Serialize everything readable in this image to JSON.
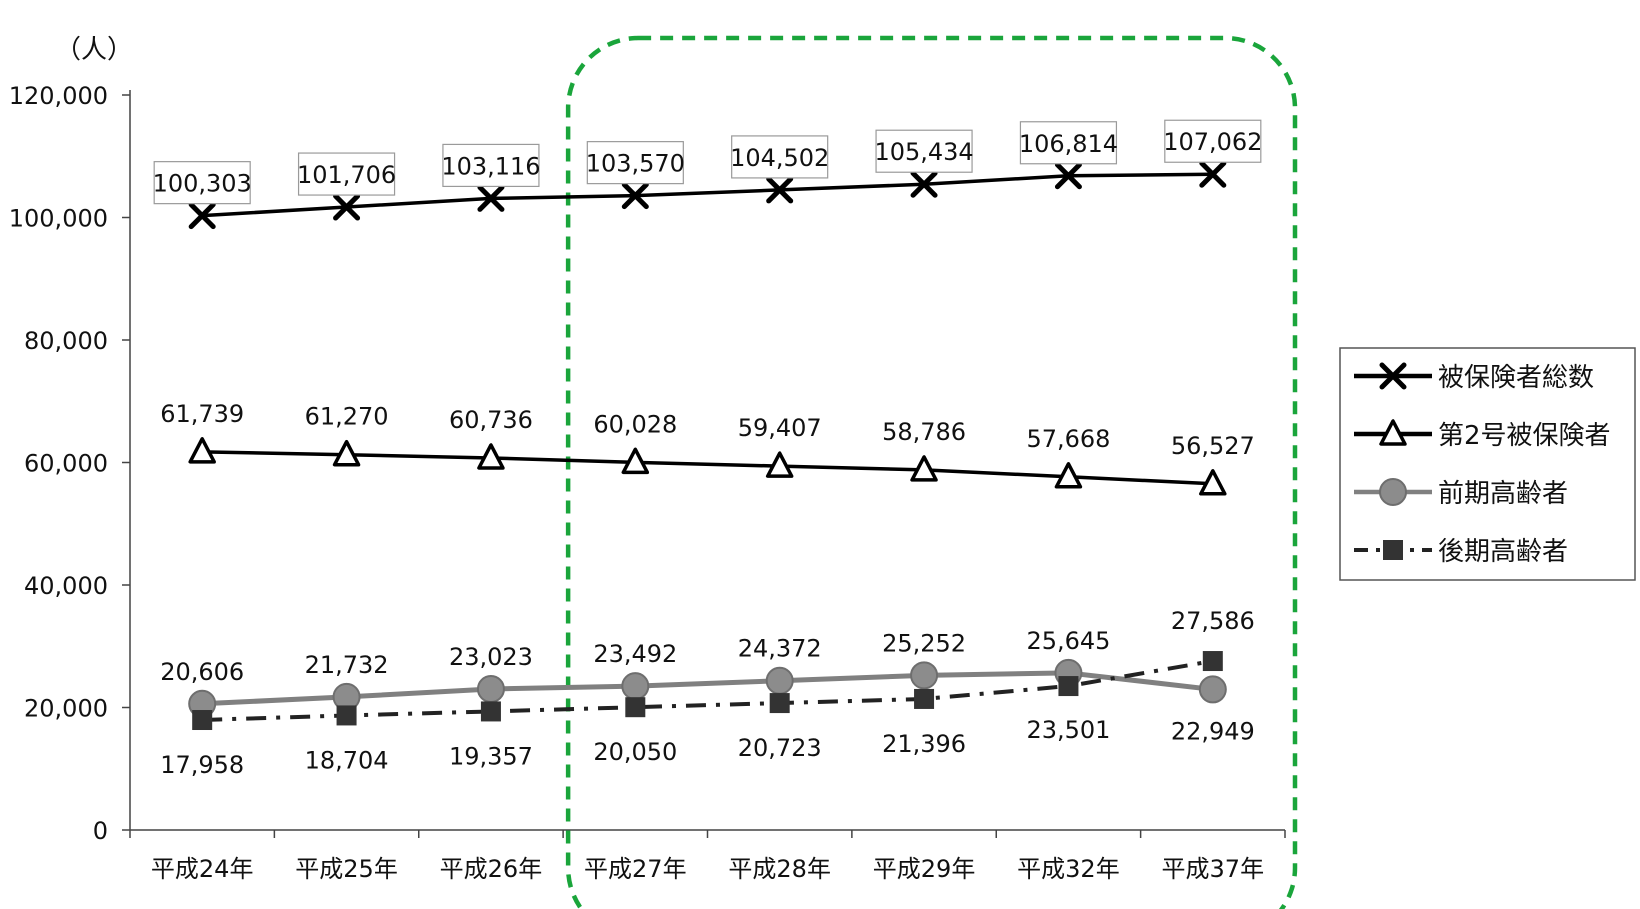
{
  "chart_data": {
    "type": "line",
    "ylabel": "（人）",
    "ylim": [
      0,
      120000
    ],
    "yticks": [
      0,
      20000,
      40000,
      60000,
      80000,
      100000,
      120000
    ],
    "ytick_labels": [
      "0",
      "20,000",
      "40,000",
      "60,000",
      "80,000",
      "100,000",
      "120,000"
    ],
    "categories": [
      "平成24年",
      "平成25年",
      "平成26年",
      "平成27年",
      "平成28年",
      "平成29年",
      "平成32年",
      "平成37年"
    ],
    "legend_position": "right",
    "highlight": {
      "from_category": "平成27年",
      "to_category": "平成37年",
      "style": "green dashed rounded box",
      "color": "#1aa53b"
    },
    "series": [
      {
        "name": "被保険者総数",
        "marker": "x",
        "line_style": "solid",
        "color": "#000000",
        "boxed_labels": true,
        "values": [
          100303,
          101706,
          103116,
          103570,
          104502,
          105434,
          106814,
          107062
        ],
        "labels": [
          "100,303",
          "101,706",
          "103,116",
          "103,570",
          "104,502",
          "105,434",
          "106,814",
          "107,062"
        ]
      },
      {
        "name": "第2号被保険者",
        "marker": "triangle",
        "line_style": "solid",
        "color": "#000000",
        "values": [
          61739,
          61270,
          60736,
          60028,
          59407,
          58786,
          57668,
          56527
        ],
        "labels": [
          "61,739",
          "61,270",
          "60,736",
          "60,028",
          "59,407",
          "58,786",
          "57,668",
          "56,527"
        ]
      },
      {
        "name": "前期高齢者",
        "marker": "circle",
        "line_style": "solid",
        "color": "#808080",
        "values": [
          20606,
          21732,
          23023,
          23492,
          24372,
          25252,
          25645,
          22949
        ],
        "labels": [
          "20,606",
          "21,732",
          "23,023",
          "23,492",
          "24,372",
          "25,252",
          "25,645",
          "22,949"
        ]
      },
      {
        "name": "後期高齢者",
        "marker": "square",
        "line_style": "dash-dot",
        "color": "#222222",
        "values": [
          17958,
          18704,
          19357,
          20050,
          20723,
          21396,
          23501,
          27586
        ],
        "labels": [
          "17,958",
          "18,704",
          "19,357",
          "20,050",
          "20,723",
          "21,396",
          "23,501",
          "27,586"
        ]
      }
    ]
  }
}
